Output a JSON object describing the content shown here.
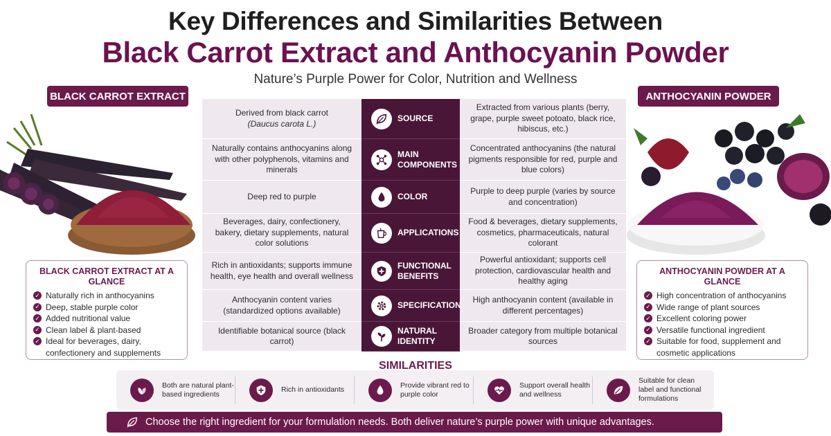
{
  "header": {
    "title_line1": "Key Differences and Similarities Between",
    "title_line2": "Black Carrot Extract and Anthocyanin Powder",
    "subtitle": "Nature’s Purple Power for Color, Nutrition and Wellness"
  },
  "labels": {
    "left": "BLACK CARROT EXTRACT",
    "right": "ANTHOCYANIN POWDER"
  },
  "rows": [
    {
      "left_a": "Derived from black carrot",
      "left_b": "(Daucus carota L.)",
      "icon": "leaf-icon",
      "label": "SOURCE",
      "right": "Extracted from various plants (berry, grape, purple sweet potoato, black rice, hibiscus, etc.)"
    },
    {
      "left": "Naturally contains anthocyanins along with other polyphenols, vitamins and minerals",
      "icon": "molecule-icon",
      "label": "MAIN COMPONENTS",
      "right": "Concentrated anthocyanins (the natural pigments responsible for red, purple and blue colors)"
    },
    {
      "left": "Deep red to purple",
      "icon": "drop-icon",
      "label": "COLOR",
      "right": "Purple to deep purple (varies by source and concentration)"
    },
    {
      "left": "Beverages, dairy, confectionery, bakery, dietary supplements, natural color solutions",
      "icon": "cup-icon",
      "label": "APPLICATIONS",
      "right": "Food & beverages, dietary supplements, cosmetics, pharmaceuticals, natural colorant"
    },
    {
      "left": "Rich in antioxidants; supports immune health, eye health and overall wellness",
      "icon": "shield-icon",
      "label": "FUNCTIONAL BENEFITS",
      "right": "Powerful antioxidant; supports cell protection, cardiovascular health and healthy aging"
    },
    {
      "left": "Anthocyanin content varies (standardized options available)",
      "icon": "gear-icon",
      "label": "SPECIFICATION",
      "right": "High anthocyanin content (available in different percentages)"
    },
    {
      "left": "Identifiable botanical source (black carrot)",
      "icon": "plant-icon",
      "label": "NATURAL IDENTITY",
      "right": "Broader category from multiple botanical sources"
    }
  ],
  "glance_left": {
    "title": "BLACK CARROT EXTRACT AT A GLANCE",
    "items": [
      "Naturally rich in anthocyanins",
      "Deep, stable purple color",
      "Added nutritional value",
      "Clean label & plant-based",
      "Ideal for beverages, dairy, confectionery and supplements"
    ]
  },
  "glance_right": {
    "title": "ANTHOCYANIN POWDER AT A GLANCE",
    "items": [
      "High concentration of anthocyanins",
      "Wide range of plant sources",
      "Excellent coloring power",
      "Versatile functional ingredient",
      "Suitable for food, supplement and cosmetic applications"
    ]
  },
  "similarities": {
    "title": "SIMILARITIES",
    "items": [
      {
        "icon": "leaves-icon",
        "text": "Both are natural plant-based ingredients"
      },
      {
        "icon": "shield-icon",
        "text": "Rich in antioxidants"
      },
      {
        "icon": "drop-icon",
        "text": "Provide vibrant red to purple color"
      },
      {
        "icon": "heart-icon",
        "text": "Support overall health and wellness"
      },
      {
        "icon": "leaf-icon",
        "text": "Suitable for clean label and functional formulations"
      }
    ]
  },
  "footer": {
    "text": "Choose the right ingredient for your formulation needs. Both deliver nature’s purple power with unique advantages."
  },
  "colors": {
    "accent": "#6b1a4c",
    "dark": "#4a1638",
    "title": "#6b1250",
    "row_bg": "#efe9ef"
  }
}
